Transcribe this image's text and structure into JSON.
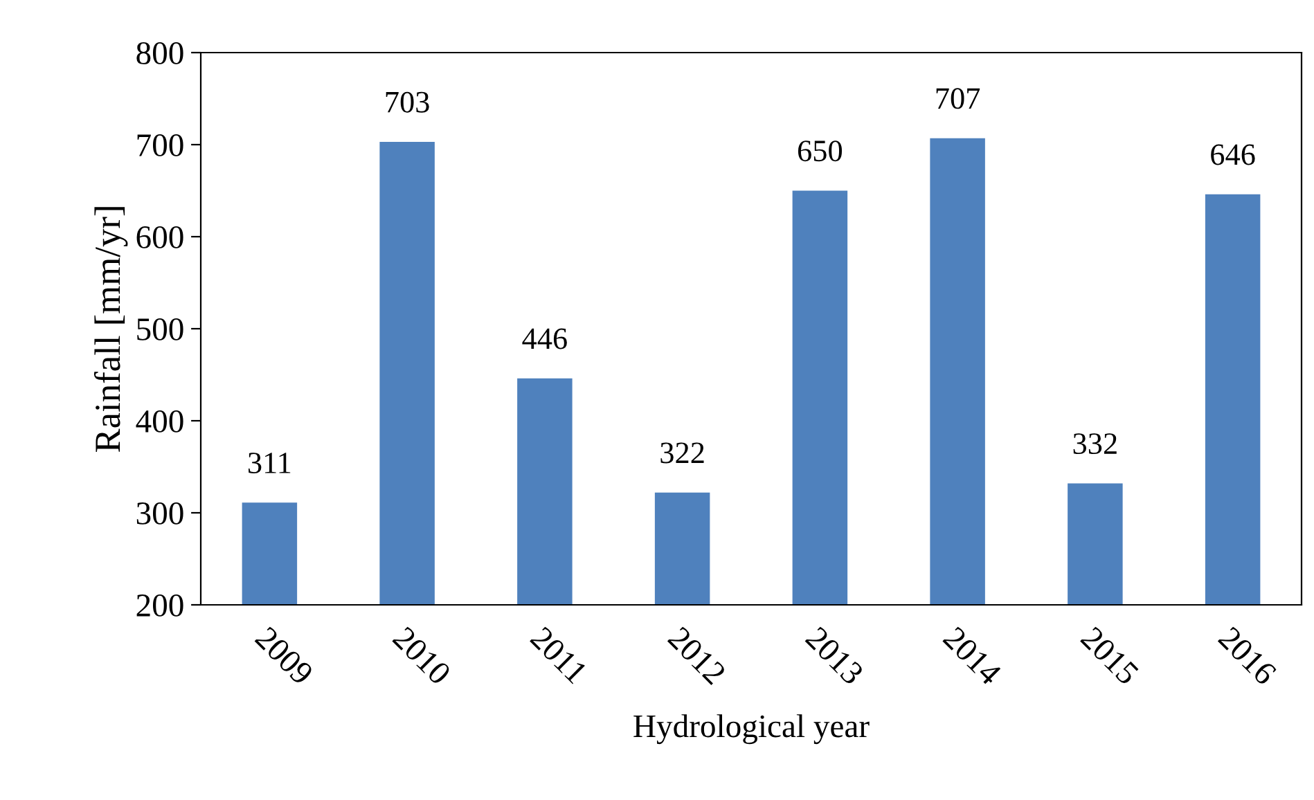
{
  "chart_data": {
    "type": "bar",
    "xlabel": "Hydrological year",
    "ylabel": "Rainfall [mm/yr]",
    "categories": [
      "2009",
      "2010",
      "2011",
      "2012",
      "2013",
      "2014",
      "2015",
      "2016"
    ],
    "values": [
      311,
      703,
      446,
      322,
      650,
      707,
      332,
      646
    ],
    "color": "#4f81bd",
    "ylim": [
      200,
      800
    ],
    "yticks": [
      200,
      300,
      400,
      500,
      600,
      700,
      800
    ],
    "data_labels": true,
    "grid": false,
    "legend": false
  }
}
